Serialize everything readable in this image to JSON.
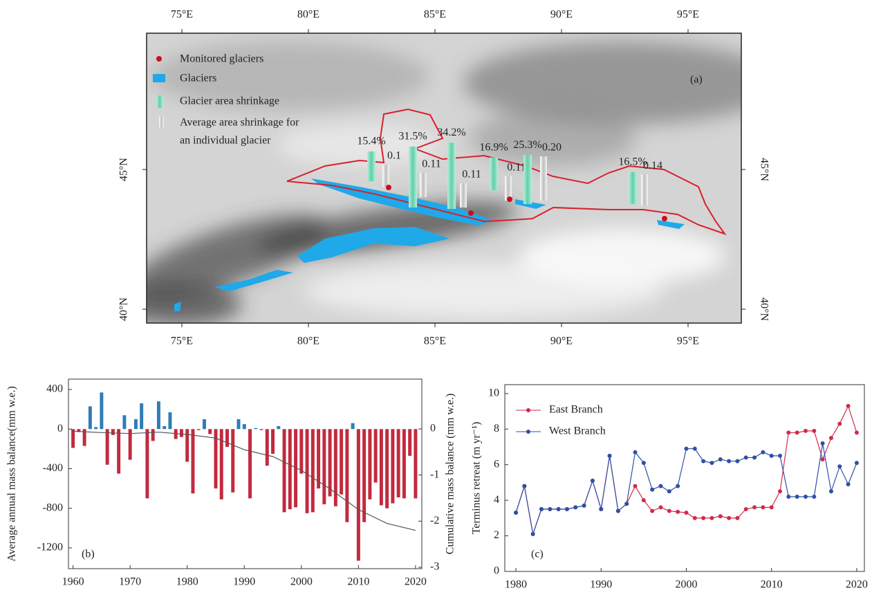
{
  "map": {
    "panel_label": "(a)",
    "legend": {
      "monitored": "Monitored glaciers",
      "glaciers": "Glaciers",
      "shrinkage": "Glacier area shrinkage",
      "individual": [
        "Average area shrinkage for",
        "an individual glacier"
      ]
    },
    "lon_ticks": [
      {
        "value": 75,
        "label": "75°E"
      },
      {
        "value": 80,
        "label": "80°E"
      },
      {
        "value": 85,
        "label": "85°E"
      },
      {
        "value": 90,
        "label": "90°E"
      },
      {
        "value": 95,
        "label": "95°E"
      }
    ],
    "lat_ticks": [
      {
        "value": 45,
        "label": "45°N"
      },
      {
        "value": 40,
        "label": "40°N"
      }
    ],
    "sites": [
      {
        "percent": {
          "value": 15.4,
          "label": "15.4%"
        },
        "individual": {
          "value": 0.1,
          "label": "0.1"
        }
      },
      {
        "percent": {
          "value": 31.5,
          "label": "31.5%"
        },
        "individual": {
          "value": 0.11,
          "label": "0.11"
        }
      },
      {
        "percent": {
          "value": 34.2,
          "label": "34.2%"
        },
        "individual": {
          "value": 0.11,
          "label": "0.11"
        }
      },
      {
        "percent": {
          "value": 16.9,
          "label": "16.9%"
        },
        "individual": {
          "value": 0.11,
          "label": "0.11"
        }
      },
      {
        "percent": {
          "value": 25.3,
          "label": "25.3%"
        },
        "individual": {
          "value": 0.2,
          "label": "0.20"
        }
      },
      {
        "percent": {
          "value": 16.5,
          "label": "16.5%"
        },
        "individual": {
          "value": 0.14,
          "label": "0.14"
        }
      }
    ]
  },
  "chart_data": [
    {
      "type": "bar",
      "panel_label": "(b)",
      "y_label": "Average annual mass balance(mm w.e.)",
      "y2_label": "Cumulative mass balance (mm w.e.)",
      "x": [
        1960,
        1961,
        1962,
        1963,
        1964,
        1965,
        1966,
        1967,
        1968,
        1969,
        1970,
        1971,
        1972,
        1973,
        1974,
        1975,
        1976,
        1977,
        1978,
        1979,
        1980,
        1981,
        1982,
        1983,
        1984,
        1985,
        1986,
        1987,
        1988,
        1989,
        1990,
        1991,
        1992,
        1993,
        1994,
        1995,
        1996,
        1997,
        1998,
        1999,
        2000,
        2001,
        2002,
        2003,
        2004,
        2005,
        2006,
        2007,
        2008,
        2009,
        2010,
        2011,
        2012,
        2013,
        2014,
        2015,
        2016,
        2017,
        2018,
        2019,
        2020
      ],
      "xlim": [
        1959.2,
        2021.1
      ],
      "xticks": [
        1960,
        1970,
        1980,
        1990,
        2000,
        2010,
        2020
      ],
      "ylim": [
        -1410,
        505
      ],
      "yticks": [
        400,
        0,
        -400,
        -800,
        -1200
      ],
      "y2lim": [
        -3.03,
        1.08
      ],
      "y2ticks": [
        0,
        -1,
        -2,
        -3
      ],
      "series": [
        {
          "type": "bar",
          "colors": {
            "positive": "#2f7db5",
            "negative": "#c22a3e"
          },
          "values": [
            -190,
            -30,
            -170,
            230,
            20,
            370,
            -360,
            -60,
            -450,
            140,
            -310,
            100,
            260,
            -700,
            -120,
            280,
            30,
            170,
            -100,
            -80,
            -330,
            -650,
            -10,
            100,
            -50,
            -600,
            -710,
            -180,
            -640,
            100,
            50,
            -700,
            10,
            -10,
            -370,
            -250,
            30,
            -840,
            -810,
            -790,
            -450,
            -850,
            -840,
            -600,
            -760,
            -680,
            -780,
            -660,
            -940,
            60,
            -1330,
            -940,
            -710,
            -540,
            -770,
            -800,
            -750,
            -690,
            -700,
            -270,
            -700
          ]
        },
        {
          "type": "line",
          "axis": "y2",
          "color": "#555555",
          "x": [
            1960,
            1965,
            1970,
            1975,
            1980,
            1985,
            1990,
            1995,
            2000,
            2005,
            2010,
            2015,
            2020
          ],
          "values": [
            -0.05,
            -0.08,
            -0.1,
            -0.07,
            -0.12,
            -0.2,
            -0.45,
            -0.6,
            -0.9,
            -1.3,
            -1.75,
            -2.05,
            -2.2
          ]
        }
      ]
    },
    {
      "type": "line",
      "panel_label": "(c)",
      "y_label": "Terminus retreat (m yr⁻¹)",
      "x": [
        1980,
        1981,
        1982,
        1983,
        1984,
        1985,
        1986,
        1987,
        1988,
        1989,
        1990,
        1991,
        1992,
        1993,
        1994,
        1995,
        1996,
        1997,
        1998,
        1999,
        2000,
        2001,
        2002,
        2003,
        2004,
        2005,
        2006,
        2007,
        2008,
        2009,
        2010,
        2011,
        2012,
        2013,
        2014,
        2015,
        2016,
        2017,
        2018,
        2019,
        2020
      ],
      "xlim": [
        1978.7,
        2020.9
      ],
      "xticks": [
        1980,
        1990,
        2000,
        2010,
        2020
      ],
      "ylim": [
        0,
        10.5
      ],
      "yticks": [
        0,
        2,
        4,
        6,
        8,
        10
      ],
      "legend": "upper left",
      "series": [
        {
          "name": "East Branch",
          "color": "#d12b4a",
          "values": [
            3.3,
            4.8,
            2.1,
            3.5,
            3.5,
            3.5,
            3.5,
            3.6,
            3.7,
            5.1,
            3.5,
            6.5,
            3.4,
            3.8,
            4.8,
            4.0,
            3.4,
            3.6,
            3.4,
            3.35,
            3.3,
            3.0,
            3.0,
            3.0,
            3.1,
            3.0,
            3.0,
            3.5,
            3.6,
            3.6,
            3.6,
            4.5,
            7.8,
            7.8,
            7.9,
            7.9,
            6.3,
            7.5,
            8.3,
            9.3,
            7.8
          ]
        },
        {
          "name": "West Branch",
          "color": "#2f4fa8",
          "values": [
            3.3,
            4.8,
            2.1,
            3.5,
            3.5,
            3.5,
            3.5,
            3.6,
            3.7,
            5.1,
            3.5,
            6.5,
            3.4,
            3.8,
            6.7,
            6.1,
            4.6,
            4.8,
            4.5,
            4.8,
            6.9,
            6.9,
            6.2,
            6.1,
            6.3,
            6.2,
            6.2,
            6.4,
            6.4,
            6.7,
            6.5,
            6.5,
            4.2,
            4.2,
            4.2,
            4.2,
            7.2,
            4.5,
            5.9,
            4.9,
            6.1
          ]
        }
      ]
    }
  ]
}
